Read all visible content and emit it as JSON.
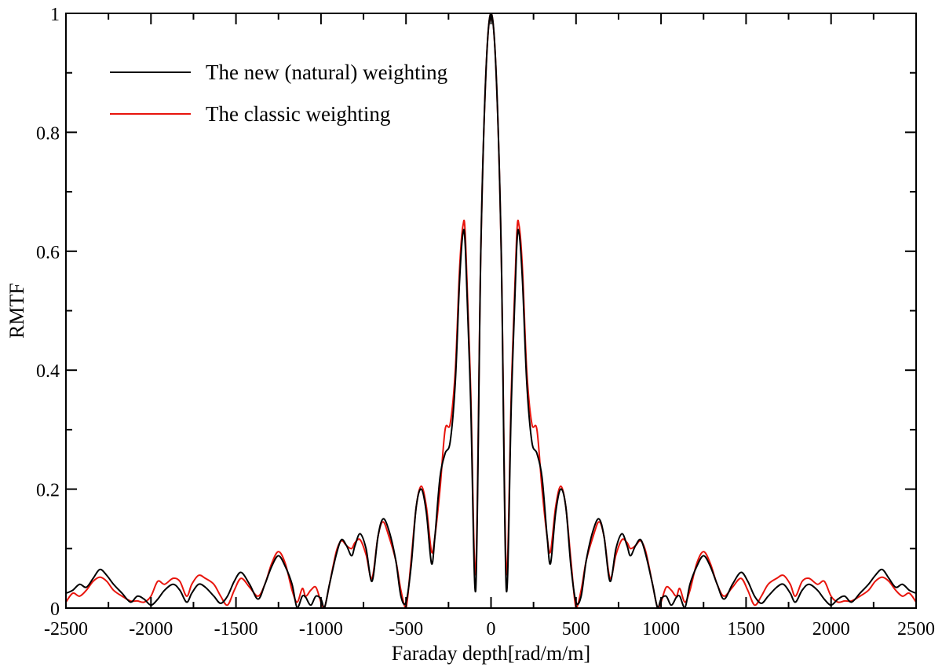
{
  "chart_data": {
    "type": "line",
    "title": "",
    "xlabel": "Faraday depth[rad/m/m]",
    "ylabel": "RMTF",
    "xlim": [
      -2500,
      2500
    ],
    "ylim": [
      0,
      1
    ],
    "x_ticks": [
      -2500,
      -2000,
      -1500,
      -1000,
      -500,
      0,
      500,
      1000,
      1500,
      2000,
      2500
    ],
    "x_tick_labels": [
      "-2500",
      "-2000",
      "-1500",
      "-1000",
      "-500",
      "0",
      "500",
      "1000",
      "1500",
      "2000",
      "2500"
    ],
    "y_ticks": [
      0,
      0.2,
      0.4,
      0.6,
      0.8,
      1
    ],
    "y_tick_labels": [
      "0",
      "0.2",
      "0.4",
      "0.6",
      "0.8",
      "1"
    ],
    "grid": false,
    "legend_position": "top-left",
    "series": [
      {
        "name": "The new (natural) weighting",
        "color": "#000000",
        "points": [
          [
            0,
            1.0
          ],
          [
            30,
            0.9
          ],
          [
            60,
            0.6
          ],
          [
            90,
            0.03
          ],
          [
            120,
            0.35
          ],
          [
            150,
            0.6
          ],
          [
            165,
            0.63
          ],
          [
            185,
            0.55
          ],
          [
            210,
            0.38
          ],
          [
            240,
            0.28
          ],
          [
            270,
            0.26
          ],
          [
            300,
            0.22
          ],
          [
            330,
            0.12
          ],
          [
            350,
            0.075
          ],
          [
            380,
            0.16
          ],
          [
            410,
            0.2
          ],
          [
            440,
            0.17
          ],
          [
            470,
            0.07
          ],
          [
            500,
            0.01
          ],
          [
            530,
            0.02
          ],
          [
            560,
            0.08
          ],
          [
            600,
            0.13
          ],
          [
            635,
            0.15
          ],
          [
            665,
            0.12
          ],
          [
            700,
            0.045
          ],
          [
            735,
            0.1
          ],
          [
            770,
            0.125
          ],
          [
            800,
            0.105
          ],
          [
            820,
            0.088
          ],
          [
            850,
            0.105
          ],
          [
            880,
            0.115
          ],
          [
            910,
            0.09
          ],
          [
            950,
            0.04
          ],
          [
            980,
            0.0
          ],
          [
            1000,
            0.015
          ],
          [
            1030,
            0.02
          ],
          [
            1060,
            0.005
          ],
          [
            1090,
            0.018
          ],
          [
            1110,
            0.02
          ],
          [
            1140,
            0.0
          ],
          [
            1170,
            0.04
          ],
          [
            1210,
            0.07
          ],
          [
            1250,
            0.088
          ],
          [
            1290,
            0.07
          ],
          [
            1330,
            0.04
          ],
          [
            1370,
            0.015
          ],
          [
            1420,
            0.04
          ],
          [
            1470,
            0.06
          ],
          [
            1510,
            0.045
          ],
          [
            1550,
            0.02
          ],
          [
            1590,
            0.008
          ],
          [
            1630,
            0.02
          ],
          [
            1680,
            0.035
          ],
          [
            1720,
            0.04
          ],
          [
            1760,
            0.025
          ],
          [
            1790,
            0.01
          ],
          [
            1830,
            0.03
          ],
          [
            1870,
            0.04
          ],
          [
            1920,
            0.03
          ],
          [
            1960,
            0.015
          ],
          [
            2000,
            0.005
          ],
          [
            2040,
            0.015
          ],
          [
            2080,
            0.02
          ],
          [
            2120,
            0.01
          ],
          [
            2170,
            0.025
          ],
          [
            2220,
            0.04
          ],
          [
            2260,
            0.055
          ],
          [
            2300,
            0.065
          ],
          [
            2340,
            0.05
          ],
          [
            2380,
            0.035
          ],
          [
            2420,
            0.04
          ],
          [
            2460,
            0.03
          ],
          [
            2500,
            0.025
          ]
        ]
      },
      {
        "name": "The classic weighting",
        "color": "#e8140c",
        "points": [
          [
            0,
            1.0
          ],
          [
            30,
            0.9
          ],
          [
            60,
            0.6
          ],
          [
            90,
            0.06
          ],
          [
            120,
            0.37
          ],
          [
            150,
            0.62
          ],
          [
            165,
            0.643
          ],
          [
            185,
            0.57
          ],
          [
            210,
            0.4
          ],
          [
            240,
            0.31
          ],
          [
            270,
            0.3
          ],
          [
            300,
            0.2
          ],
          [
            330,
            0.12
          ],
          [
            350,
            0.095
          ],
          [
            380,
            0.17
          ],
          [
            410,
            0.205
          ],
          [
            440,
            0.17
          ],
          [
            470,
            0.08
          ],
          [
            500,
            0.0
          ],
          [
            530,
            0.03
          ],
          [
            560,
            0.08
          ],
          [
            600,
            0.12
          ],
          [
            635,
            0.145
          ],
          [
            665,
            0.12
          ],
          [
            700,
            0.05
          ],
          [
            735,
            0.09
          ],
          [
            770,
            0.115
          ],
          [
            800,
            0.11
          ],
          [
            820,
            0.1
          ],
          [
            850,
            0.105
          ],
          [
            880,
            0.113
          ],
          [
            910,
            0.095
          ],
          [
            950,
            0.04
          ],
          [
            980,
            0.0
          ],
          [
            1000,
            0.01
          ],
          [
            1030,
            0.035
          ],
          [
            1060,
            0.03
          ],
          [
            1090,
            0.02
          ],
          [
            1110,
            0.033
          ],
          [
            1140,
            0.01
          ],
          [
            1170,
            0.03
          ],
          [
            1210,
            0.075
          ],
          [
            1250,
            0.095
          ],
          [
            1290,
            0.075
          ],
          [
            1330,
            0.04
          ],
          [
            1370,
            0.02
          ],
          [
            1420,
            0.035
          ],
          [
            1470,
            0.05
          ],
          [
            1510,
            0.03
          ],
          [
            1550,
            0.005
          ],
          [
            1590,
            0.02
          ],
          [
            1630,
            0.04
          ],
          [
            1680,
            0.05
          ],
          [
            1720,
            0.055
          ],
          [
            1760,
            0.04
          ],
          [
            1790,
            0.02
          ],
          [
            1830,
            0.045
          ],
          [
            1870,
            0.05
          ],
          [
            1920,
            0.04
          ],
          [
            1960,
            0.045
          ],
          [
            2000,
            0.02
          ],
          [
            2040,
            0.01
          ],
          [
            2080,
            0.012
          ],
          [
            2120,
            0.012
          ],
          [
            2170,
            0.02
          ],
          [
            2220,
            0.03
          ],
          [
            2260,
            0.045
          ],
          [
            2300,
            0.052
          ],
          [
            2340,
            0.045
          ],
          [
            2380,
            0.03
          ],
          [
            2420,
            0.02
          ],
          [
            2460,
            0.025
          ],
          [
            2500,
            0.01
          ]
        ]
      }
    ]
  }
}
